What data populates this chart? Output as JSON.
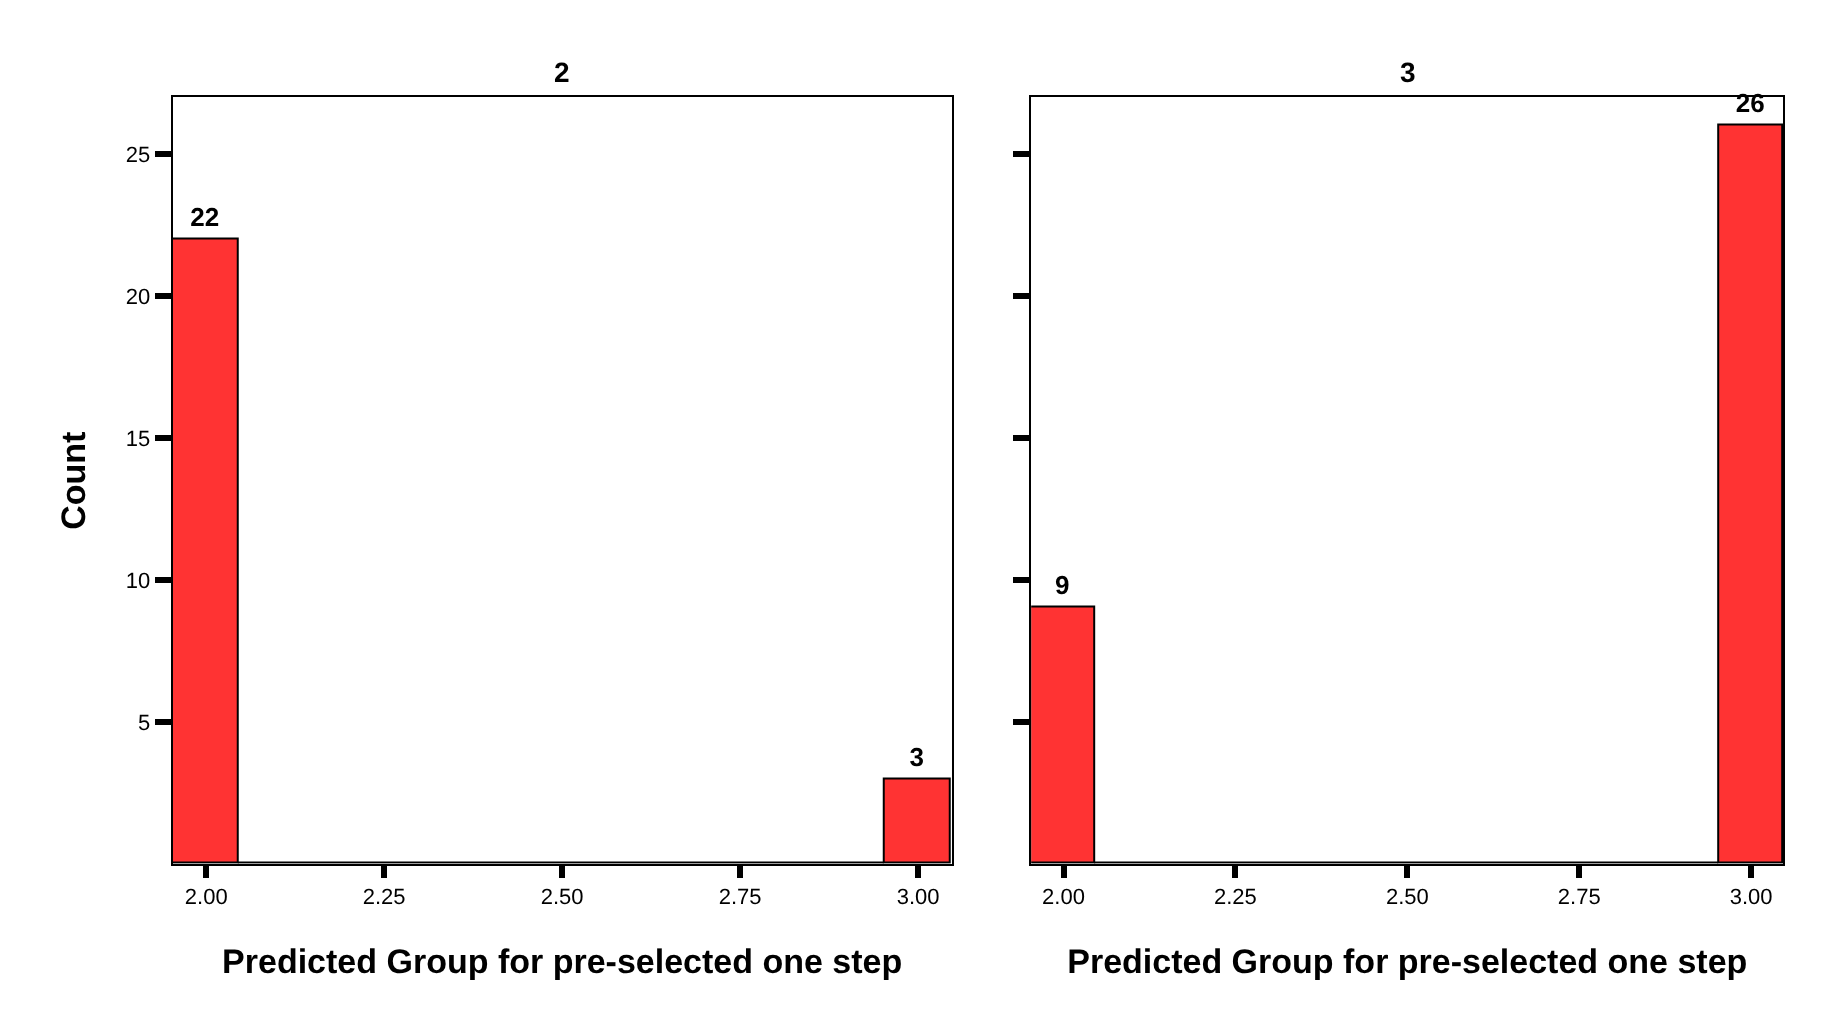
{
  "chart_data": [
    {
      "type": "histogram",
      "title": "2",
      "xlabel": "Predicted Group for pre-selected one step",
      "ylabel": "Count",
      "bins": [
        1.953,
        2.047,
        2.953,
        3.047
      ],
      "values": [
        22,
        0,
        3
      ],
      "value_labels": [
        "22",
        null,
        "3"
      ],
      "color": "#ff3333",
      "xlim": [
        1.953,
        3.047
      ],
      "xticks": [
        {
          "value": 2,
          "label": "2.00"
        },
        {
          "value": 2.25,
          "label": "2.25"
        },
        {
          "value": 2.5,
          "label": "2.50"
        },
        {
          "value": 2.75,
          "label": "2.75"
        },
        {
          "value": 3,
          "label": "3.00"
        }
      ],
      "ylim": [
        0,
        27
      ],
      "yticks": [
        5,
        10,
        15,
        20,
        25
      ]
    },
    {
      "type": "histogram",
      "title": "3",
      "xlabel": "Predicted Group for pre-selected one step",
      "bins": [
        1.953,
        2.047,
        2.953,
        3.047
      ],
      "values": [
        9,
        0,
        26
      ],
      "value_labels": [
        "9",
        null,
        "26"
      ],
      "color": "#ff3333",
      "xlim": [
        1.953,
        3.047
      ],
      "xticks": [
        {
          "value": 2,
          "label": "2.00"
        },
        {
          "value": 2.25,
          "label": "2.25"
        },
        {
          "value": 2.5,
          "label": "2.50"
        },
        {
          "value": 2.75,
          "label": "2.75"
        },
        {
          "value": 3,
          "label": "3.00"
        }
      ],
      "ylim": [
        0,
        27
      ],
      "yticks": [
        5,
        10,
        15,
        20,
        25
      ],
      "tick_labels": "x"
    }
  ]
}
